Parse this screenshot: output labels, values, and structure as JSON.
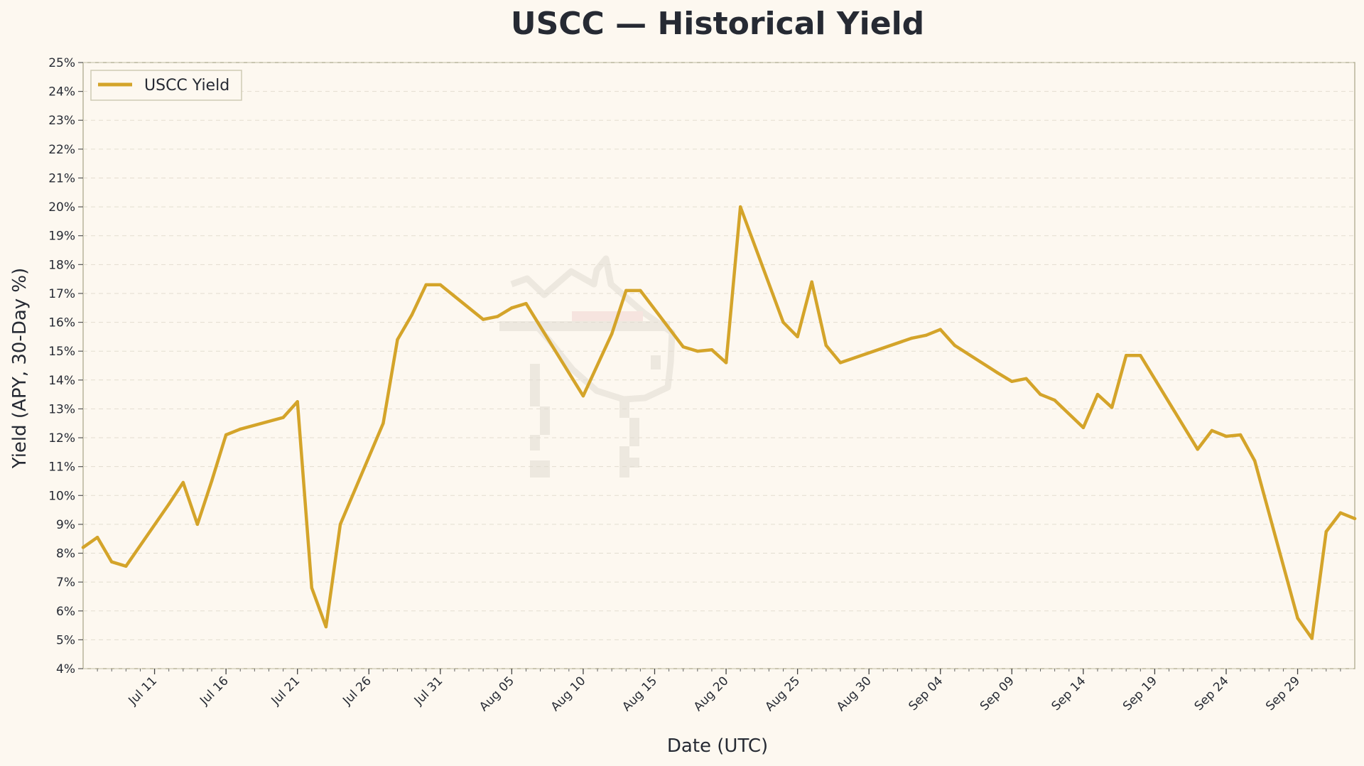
{
  "chart_data": {
    "type": "line",
    "title": "USCC — Historical Yield",
    "xlabel": "Date (UTC)",
    "ylabel": "Yield (APY, 30-Day %)",
    "x_range": [
      "2025-07-06",
      "2025-10-03"
    ],
    "ylim": [
      4,
      25
    ],
    "y_ticks": [
      4,
      5,
      6,
      7,
      8,
      9,
      10,
      11,
      12,
      13,
      14,
      15,
      16,
      17,
      18,
      19,
      20,
      21,
      22,
      23,
      24,
      25
    ],
    "y_tick_labels": [
      "4%",
      "5%",
      "6%",
      "7%",
      "8%",
      "9%",
      "10%",
      "11%",
      "12%",
      "13%",
      "14%",
      "15%",
      "16%",
      "17%",
      "18%",
      "19%",
      "20%",
      "21%",
      "22%",
      "23%",
      "24%",
      "25%"
    ],
    "x_ticks": [
      "2025-07-11",
      "2025-07-16",
      "2025-07-21",
      "2025-07-26",
      "2025-07-31",
      "2025-08-05",
      "2025-08-10",
      "2025-08-15",
      "2025-08-20",
      "2025-08-25",
      "2025-08-30",
      "2025-09-04",
      "2025-09-09",
      "2025-09-14",
      "2025-09-19",
      "2025-09-24",
      "2025-09-29"
    ],
    "x_tick_labels": [
      "Jul 11",
      "Jul 16",
      "Jul 21",
      "Jul 26",
      "Jul 31",
      "Aug 05",
      "Aug 10",
      "Aug 15",
      "Aug 20",
      "Aug 25",
      "Aug 30",
      "Sep 04",
      "Sep 09",
      "Sep 14",
      "Sep 19",
      "Sep 24",
      "Sep 29"
    ],
    "grid": "horizontal, dashed",
    "legend_position": "top-left",
    "series": [
      {
        "name": "USCC Yield",
        "color": "#d4a42a",
        "x": [
          "2025-07-06",
          "2025-07-07",
          "2025-07-08",
          "2025-07-09",
          "2025-07-12",
          "2025-07-13",
          "2025-07-14",
          "2025-07-15",
          "2025-07-16",
          "2025-07-17",
          "2025-07-20",
          "2025-07-21",
          "2025-07-22",
          "2025-07-23",
          "2025-07-24",
          "2025-07-27",
          "2025-07-28",
          "2025-07-29",
          "2025-07-30",
          "2025-07-31",
          "2025-08-03",
          "2025-08-04",
          "2025-08-05",
          "2025-08-06",
          "2025-08-10",
          "2025-08-12",
          "2025-08-13",
          "2025-08-14",
          "2025-08-17",
          "2025-08-18",
          "2025-08-19",
          "2025-08-20",
          "2025-08-21",
          "2025-08-24",
          "2025-08-25",
          "2025-08-26",
          "2025-08-27",
          "2025-08-28",
          "2025-09-02",
          "2025-09-03",
          "2025-09-04",
          "2025-09-05",
          "2025-09-08",
          "2025-09-09",
          "2025-09-10",
          "2025-09-11",
          "2025-09-12",
          "2025-09-14",
          "2025-09-15",
          "2025-09-16",
          "2025-09-17",
          "2025-09-18",
          "2025-09-22",
          "2025-09-23",
          "2025-09-24",
          "2025-09-25",
          "2025-09-26",
          "2025-09-29",
          "2025-09-30",
          "2025-10-01",
          "2025-10-02",
          "2025-10-03"
        ],
        "values": [
          8.2,
          8.55,
          7.7,
          7.55,
          9.7,
          10.45,
          9.0,
          10.5,
          12.1,
          12.3,
          12.7,
          13.25,
          6.8,
          5.45,
          9.0,
          12.5,
          15.4,
          16.25,
          17.3,
          17.3,
          16.1,
          16.2,
          16.5,
          16.65,
          13.45,
          15.6,
          17.1,
          17.1,
          15.15,
          15.0,
          15.05,
          14.6,
          20.0,
          16.0,
          15.5,
          17.4,
          15.2,
          14.6,
          15.45,
          15.55,
          15.75,
          15.2,
          14.25,
          13.95,
          14.05,
          13.5,
          13.3,
          12.35,
          13.5,
          13.05,
          14.85,
          14.85,
          11.6,
          12.25,
          12.05,
          12.1,
          11.2,
          5.75,
          5.05,
          8.75,
          9.4,
          9.2
        ]
      }
    ]
  }
}
